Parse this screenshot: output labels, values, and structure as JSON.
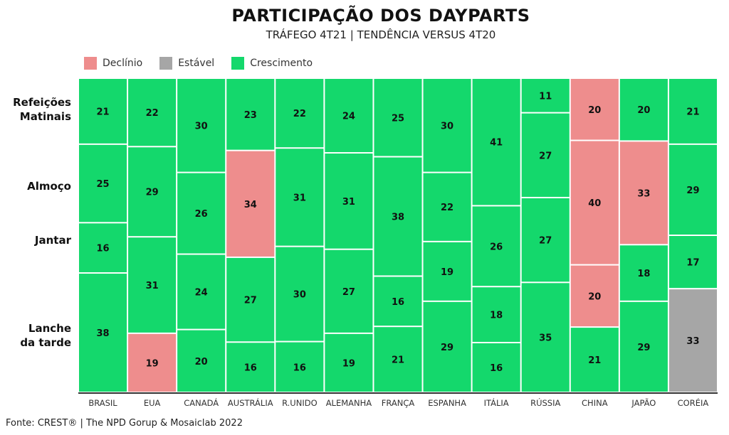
{
  "chart_data": {
    "type": "mosaic",
    "title": "PARTICIPAÇÃO DOS DAYPARTS",
    "subtitle": "TRÁFEGO 4T21 | TENDÊNCIA VERSUS 4T20",
    "legend": [
      {
        "key": "declinio",
        "label": "Declínio",
        "color": "#ee8d8d"
      },
      {
        "key": "estavel",
        "label": "Estável",
        "color": "#a6a6a6"
      },
      {
        "key": "crescimento",
        "label": "Crescimento",
        "color": "#14d86c"
      }
    ],
    "legend_position": "top-left",
    "rows": [
      "Refeições Matinais",
      "Almoço",
      "Jantar",
      "Lanche da tarde"
    ],
    "categories": [
      "BRASIL",
      "EUA",
      "CANADÁ",
      "AUSTRÁLIA",
      "R.UNIDO",
      "ALEMANHA",
      "FRANÇA",
      "ESPANHA",
      "ITÁLIA",
      "RÚSSIA",
      "CHINA",
      "JAPÃO",
      "CORÉIA"
    ],
    "values": [
      [
        21,
        25,
        16,
        38
      ],
      [
        22,
        29,
        31,
        19
      ],
      [
        30,
        26,
        24,
        20
      ],
      [
        23,
        34,
        27,
        16
      ],
      [
        22,
        31,
        30,
        16
      ],
      [
        24,
        31,
        27,
        19
      ],
      [
        25,
        38,
        16,
        21
      ],
      [
        30,
        22,
        19,
        29
      ],
      [
        41,
        26,
        18,
        16
      ],
      [
        11,
        27,
        27,
        35
      ],
      [
        20,
        40,
        20,
        21
      ],
      [
        20,
        33,
        18,
        29
      ],
      [
        21,
        29,
        17,
        33
      ]
    ],
    "status": [
      [
        "c",
        "c",
        "c",
        "c"
      ],
      [
        "c",
        "c",
        "c",
        "d"
      ],
      [
        "c",
        "c",
        "c",
        "c"
      ],
      [
        "c",
        "d",
        "c",
        "c"
      ],
      [
        "c",
        "c",
        "c",
        "c"
      ],
      [
        "c",
        "c",
        "c",
        "c"
      ],
      [
        "c",
        "c",
        "c",
        "c"
      ],
      [
        "c",
        "c",
        "c",
        "c"
      ],
      [
        "c",
        "c",
        "c",
        "c"
      ],
      [
        "c",
        "c",
        "c",
        "c"
      ],
      [
        "d",
        "d",
        "d",
        "c"
      ],
      [
        "c",
        "d",
        "c",
        "c"
      ],
      [
        "c",
        "c",
        "c",
        "e"
      ]
    ]
  },
  "row_labels": [
    "Refeições\nMatinais",
    "Almoço",
    "Jantar",
    "Lanche\nda tarde"
  ],
  "footer": "Fonte: CREST® | The NPD Gorup &  Mosaiclab 2022"
}
